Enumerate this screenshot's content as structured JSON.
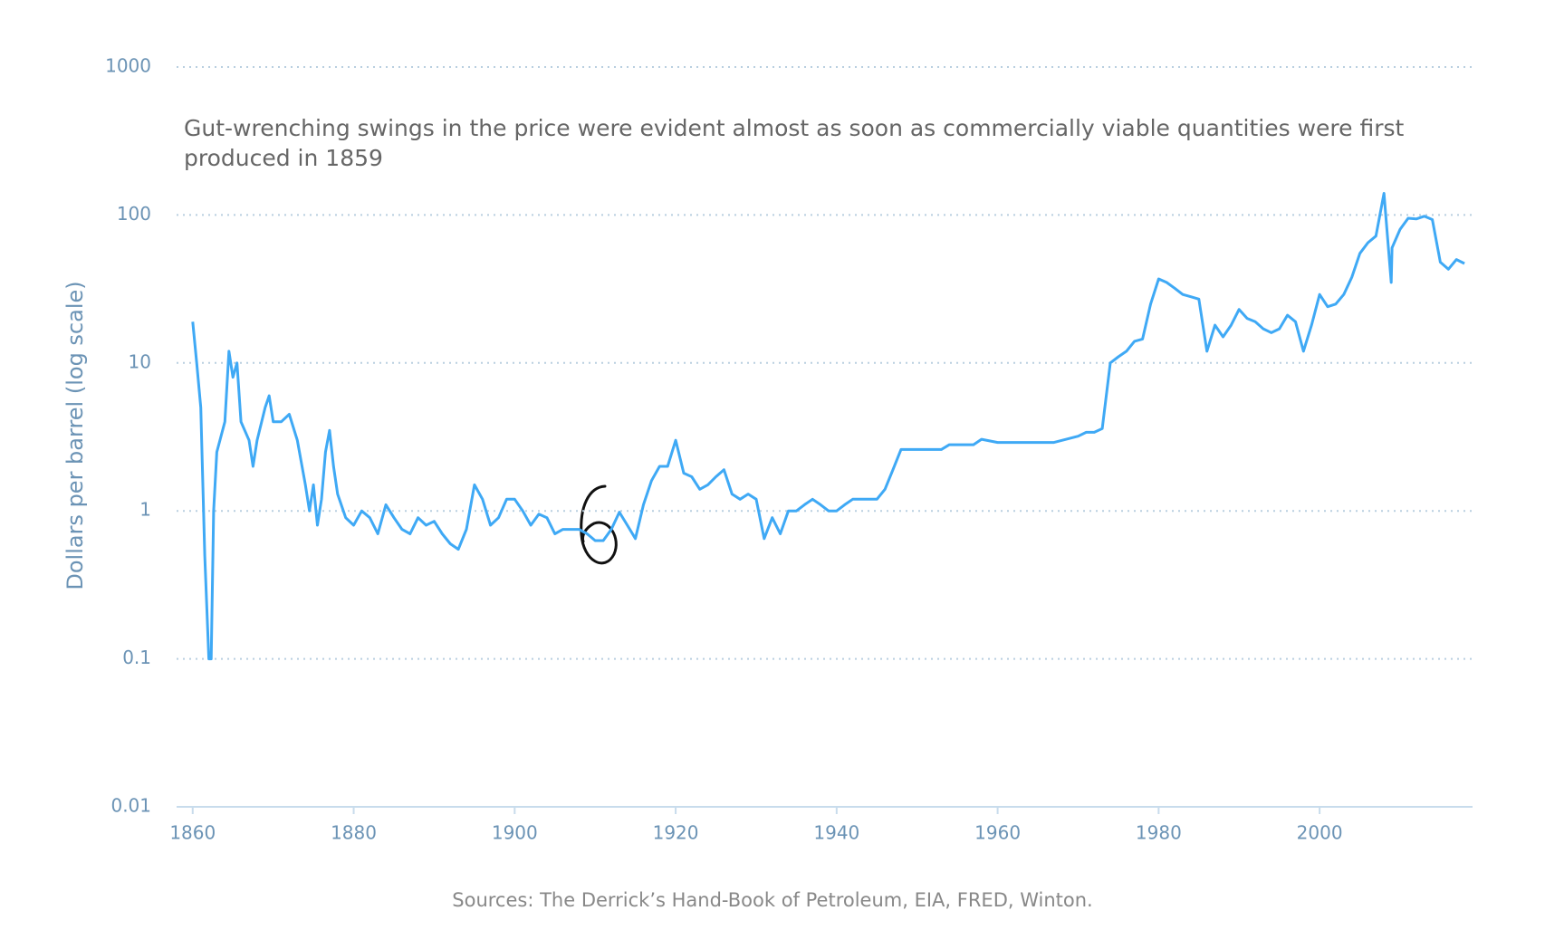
{
  "chart_data": {
    "type": "line",
    "log_scale": true,
    "grid": true,
    "color": "#3fa9f5",
    "y_label": "Dollars per barrel (log scale)",
    "annotation": "Gut-wrenching swings in the price were evident almost as soon as commercially viable quantities were first produced in 1859",
    "source": "Sources: The Derrick’s Hand-Book of Petroleum, EIA, FRED, Winton.",
    "handwritten_note": "6",
    "xlim": [
      1858,
      2019
    ],
    "xticks": [
      1860,
      1880,
      1900,
      1920,
      1940,
      1960,
      1980,
      2000
    ],
    "ylim": [
      0.01,
      1000
    ],
    "yticks": [
      0.01,
      0.1,
      1,
      10,
      100,
      1000
    ],
    "x": [
      1860,
      1860.5,
      1861,
      1861.5,
      1862,
      1862.3,
      1862.6,
      1863,
      1864,
      1864.5,
      1865,
      1865.5,
      1866,
      1867,
      1867.5,
      1868,
      1869,
      1869.5,
      1870,
      1871,
      1872,
      1873,
      1874,
      1874.5,
      1875,
      1875.5,
      1876,
      1876.5,
      1877,
      1877.5,
      1878,
      1879,
      1880,
      1881,
      1882,
      1883,
      1884,
      1885,
      1886,
      1887,
      1888,
      1889,
      1890,
      1891,
      1892,
      1893,
      1894,
      1895,
      1896,
      1897,
      1898,
      1899,
      1900,
      1901,
      1902,
      1903,
      1904,
      1905,
      1906,
      1907,
      1908,
      1909,
      1910,
      1911,
      1912,
      1913,
      1914,
      1915,
      1916,
      1917,
      1918,
      1919,
      1920,
      1921,
      1922,
      1923,
      1924,
      1925,
      1926,
      1927,
      1928,
      1929,
      1930,
      1931,
      1932,
      1933,
      1934,
      1935,
      1936,
      1937,
      1938,
      1939,
      1940,
      1941,
      1942,
      1944,
      1945,
      1946,
      1947,
      1948,
      1953,
      1954,
      1957,
      1958,
      1960,
      1967,
      1970,
      1971,
      1972,
      1973,
      1974,
      1975,
      1976,
      1977,
      1978,
      1979,
      1980,
      1981,
      1982,
      1983,
      1984,
      1985,
      1986,
      1987,
      1988,
      1989,
      1990,
      1991,
      1992,
      1993,
      1994,
      1995,
      1996,
      1997,
      1998,
      1999,
      2000,
      2001,
      2002,
      2003,
      2004,
      2005,
      2006,
      2007,
      2008,
      2008.9,
      2009,
      2010,
      2011,
      2012,
      2013,
      2014,
      2015,
      2016,
      2017,
      2018
    ],
    "values": [
      19,
      10,
      5,
      0.5,
      0.1,
      0.1,
      1,
      2.5,
      4,
      12,
      8,
      10,
      4,
      3,
      2,
      3,
      5,
      6,
      4,
      4,
      4.5,
      3,
      1.5,
      1,
      1.5,
      0.8,
      1.2,
      2.5,
      3.5,
      2,
      1.3,
      0.9,
      0.8,
      1,
      0.9,
      0.7,
      1.1,
      0.9,
      0.75,
      0.7,
      0.9,
      0.8,
      0.85,
      0.7,
      0.6,
      0.55,
      0.75,
      1.5,
      1.2,
      0.8,
      0.9,
      1.2,
      1.2,
      1,
      0.8,
      0.95,
      0.9,
      0.7,
      0.75,
      0.75,
      0.75,
      0.7,
      0.63,
      0.63,
      0.75,
      0.98,
      0.8,
      0.65,
      1.1,
      1.6,
      2,
      2,
      3,
      1.8,
      1.7,
      1.4,
      1.5,
      1.7,
      1.9,
      1.3,
      1.2,
      1.3,
      1.2,
      0.65,
      0.9,
      0.7,
      1,
      1,
      1.1,
      1.2,
      1.1,
      1,
      1,
      1.1,
      1.2,
      1.2,
      1.2,
      1.4,
      1.9,
      2.6,
      2.6,
      2.8,
      2.8,
      3.05,
      2.9,
      2.9,
      3.2,
      3.4,
      3.4,
      3.6,
      10,
      11,
      12,
      14,
      14.5,
      25,
      37,
      35,
      32,
      29,
      28,
      27,
      12,
      18,
      15,
      18,
      23,
      20,
      19,
      17,
      16,
      17,
      21,
      19,
      12,
      18,
      29,
      24,
      25,
      29,
      38,
      55,
      65,
      72,
      140,
      35,
      60,
      80,
      95,
      94,
      98,
      93,
      48,
      43,
      50,
      47
    ]
  }
}
